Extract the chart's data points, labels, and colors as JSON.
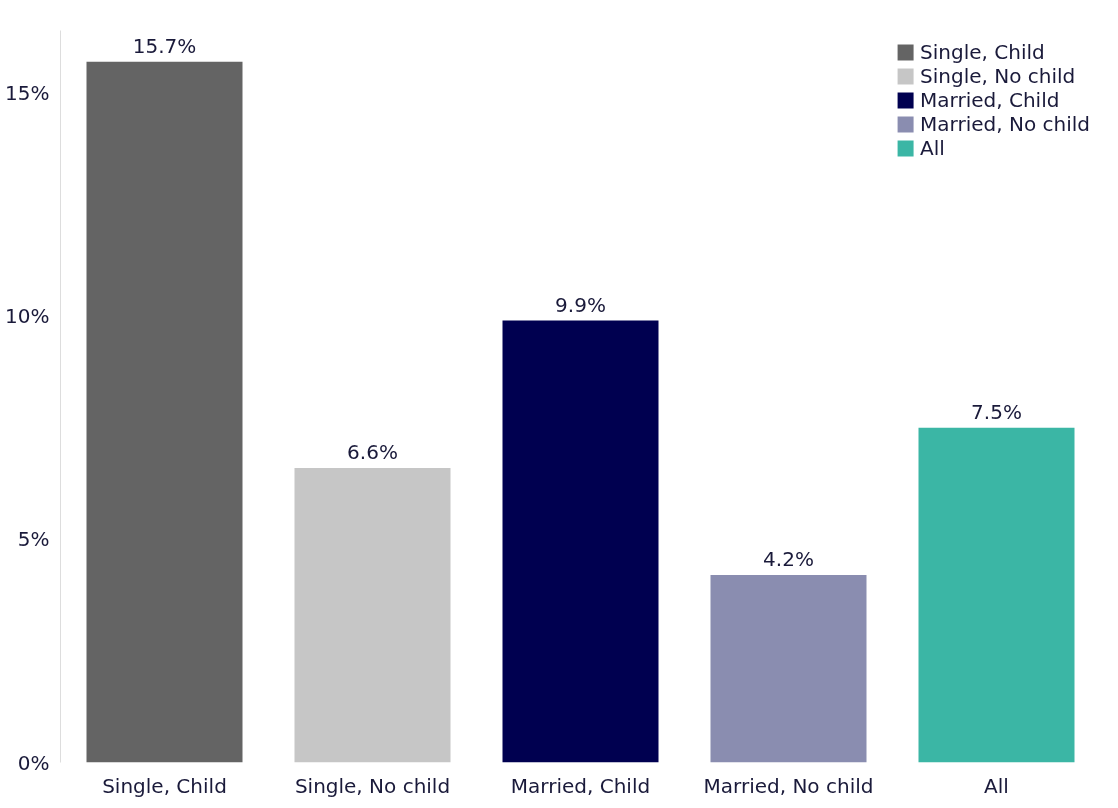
{
  "chart_data": {
    "type": "bar",
    "categories": [
      "Single, Child",
      "Single, No child",
      "Married, Child",
      "Married, No child",
      "All"
    ],
    "series": [
      {
        "name": "Single, Child",
        "color": "#646464",
        "values": [
          15.7,
          null,
          null,
          null,
          null
        ],
        "value_labels": [
          "15.7%",
          null,
          null,
          null,
          null
        ]
      },
      {
        "name": "Single, No child",
        "color": "#c6c6c6",
        "values": [
          null,
          6.6,
          null,
          null,
          null
        ],
        "value_labels": [
          null,
          "6.6%",
          null,
          null,
          null
        ]
      },
      {
        "name": "Married, Child",
        "color": "#000050",
        "values": [
          null,
          null,
          9.9,
          null,
          null
        ],
        "value_labels": [
          null,
          null,
          "9.9%",
          null,
          null
        ]
      },
      {
        "name": "Married, No child",
        "color": "#8a8db0",
        "values": [
          null,
          null,
          null,
          4.2,
          null
        ],
        "value_labels": [
          null,
          null,
          null,
          "4.2%",
          null
        ]
      },
      {
        "name": "All",
        "color": "#3bb6a5",
        "values": [
          null,
          null,
          null,
          null,
          7.5
        ],
        "value_labels": [
          null,
          null,
          null,
          null,
          "7.5%"
        ]
      }
    ],
    "ylim": [
      0,
      16.4
    ],
    "yticks": [
      {
        "value": 0,
        "label": "0%"
      },
      {
        "value": 5,
        "label": "5%"
      },
      {
        "value": 10,
        "label": "10%"
      },
      {
        "value": 15,
        "label": "15%"
      }
    ],
    "grid": false,
    "legend": "top right"
  }
}
